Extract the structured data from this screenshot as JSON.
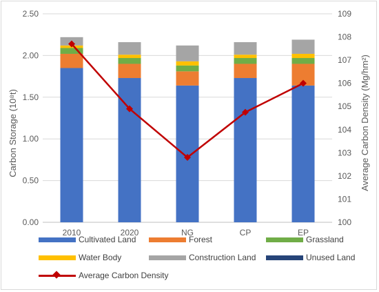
{
  "chart_data": {
    "type": "bar",
    "stacked": true,
    "categories": [
      "2010",
      "2020",
      "NG",
      "CP",
      "EP"
    ],
    "series": [
      {
        "name": "Cultivated Land",
        "color": "#4472c4",
        "values": [
          1.85,
          1.73,
          1.64,
          1.73,
          1.64
        ]
      },
      {
        "name": "Forest",
        "color": "#ed7d31",
        "values": [
          0.17,
          0.17,
          0.17,
          0.17,
          0.26
        ]
      },
      {
        "name": "Grassland",
        "color": "#70ad47",
        "values": [
          0.07,
          0.07,
          0.07,
          0.07,
          0.07
        ]
      },
      {
        "name": "Water Body",
        "color": "#ffc000",
        "values": [
          0.03,
          0.04,
          0.05,
          0.04,
          0.05
        ]
      },
      {
        "name": "Construction Land",
        "color": "#a5a5a5",
        "values": [
          0.1,
          0.15,
          0.19,
          0.15,
          0.17
        ]
      },
      {
        "name": "Unused Land",
        "color": "#264478",
        "values": [
          0.0,
          0.0,
          0.0,
          0.0,
          0.0
        ]
      }
    ],
    "line_series": {
      "name": "Average Carbon Density",
      "color": "#c00000",
      "values": [
        107.7,
        104.9,
        102.8,
        104.75,
        106.0
      ]
    },
    "ylabel": "Carbon Storage (10⁸t)",
    "y2label": "Average Carbon Density (Mg/hm²)",
    "ylim": [
      0,
      2.5
    ],
    "y2lim": [
      100,
      109
    ],
    "yticks": [
      "0.00",
      "0.50",
      "1.00",
      "1.50",
      "2.00",
      "2.50"
    ],
    "y2ticks": [
      "100",
      "101",
      "102",
      "103",
      "104",
      "105",
      "106",
      "107",
      "108",
      "109"
    ],
    "grid": true,
    "legend_position": "bottom"
  }
}
